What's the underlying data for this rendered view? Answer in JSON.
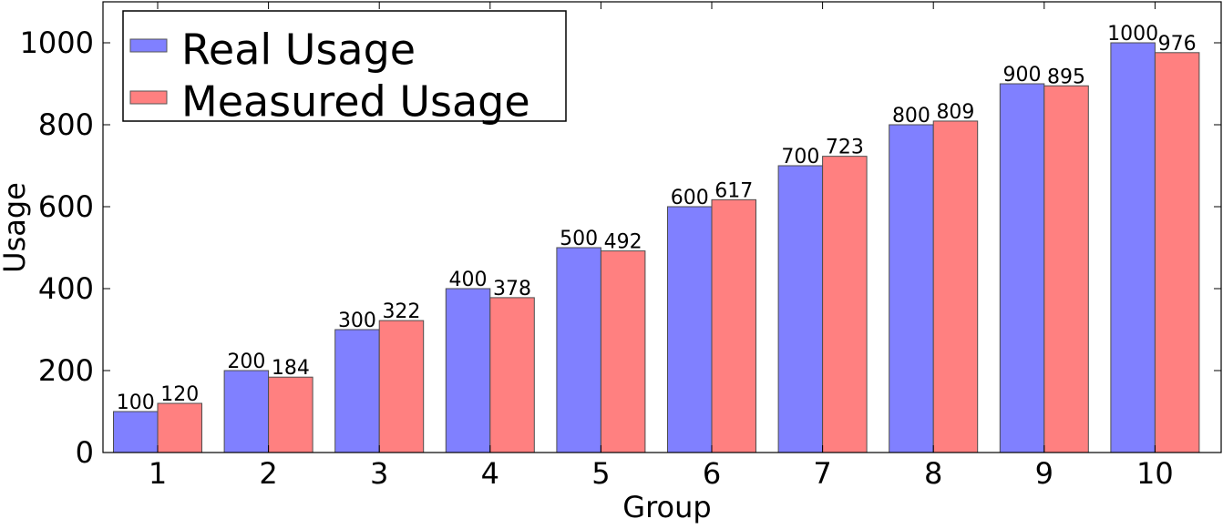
{
  "chart_data": {
    "type": "bar",
    "title": "",
    "xlabel": "Group",
    "ylabel": "Usage",
    "categories": [
      "1",
      "2",
      "3",
      "4",
      "5",
      "6",
      "7",
      "8",
      "9",
      "10"
    ],
    "series": [
      {
        "name": "Real Usage",
        "color": "#8080ff",
        "values": [
          100,
          200,
          300,
          400,
          500,
          600,
          700,
          800,
          900,
          1000
        ]
      },
      {
        "name": "Measured Usage",
        "color": "#ff8080",
        "values": [
          120,
          184,
          322,
          378,
          492,
          617,
          723,
          809,
          895,
          976
        ]
      }
    ],
    "ylim": [
      0,
      1100
    ],
    "yticks": [
      0,
      200,
      400,
      600,
      800,
      1000
    ],
    "grid": false,
    "legend_position": "top-left"
  }
}
